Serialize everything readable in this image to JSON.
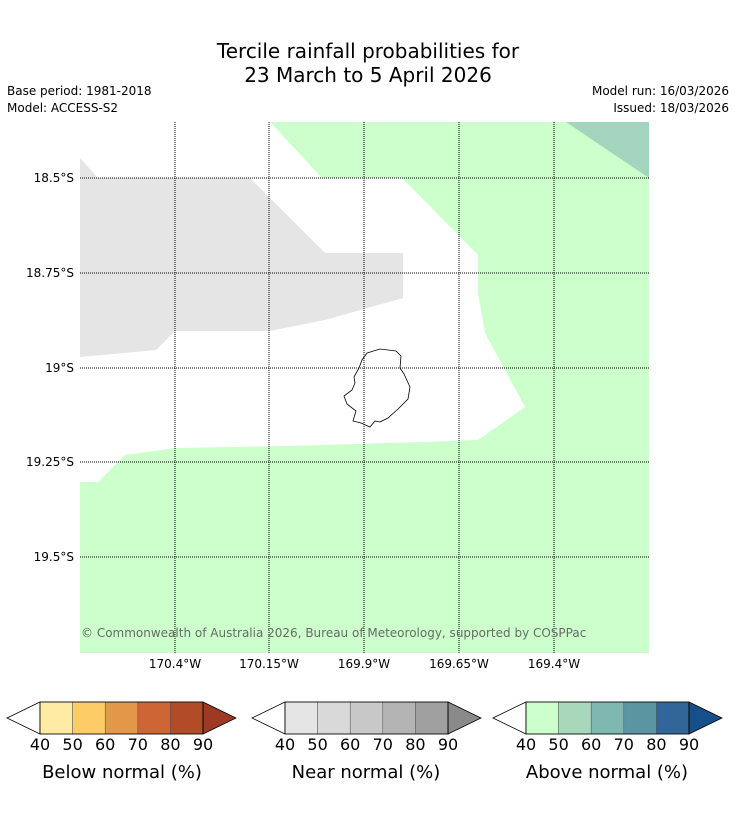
{
  "title": {
    "line1": "Tercile rainfall probabilities for",
    "line2": "23 March to 5 April 2026"
  },
  "meta": {
    "base_period": "Base period: 1981-2018",
    "model": "Model: ACCESS-S2",
    "model_run": "Model run: 16/03/2026",
    "issued": "Issued: 18/03/2026"
  },
  "map": {
    "latitude_labels": [
      "18.5°S",
      "18.75°S",
      "19°S",
      "19.25°S",
      "19.5°S"
    ],
    "longitude_labels": [
      "170.4°W",
      "170.15°W",
      "169.9°W",
      "169.65°W",
      "169.4°W"
    ],
    "copyright": "© Commonwealth of Australia 2026, Bureau of Meteorology, supported by COSPPac",
    "colors": {
      "near_40_50": "#e5e5e5",
      "above_40_50": "#ccffcc",
      "above_50_60": "#a3d4bd",
      "white": "#ffffff"
    }
  },
  "legends": [
    {
      "label": "Below normal (%)",
      "ticks": [
        "40",
        "50",
        "60",
        "70",
        "80",
        "90"
      ],
      "colors": [
        "#ffeba3",
        "#fdcc66",
        "#e29848",
        "#cd6534",
        "#b24c28",
        "#9e3a22"
      ]
    },
    {
      "label": "Near normal (%)",
      "ticks": [
        "40",
        "50",
        "60",
        "70",
        "80",
        "90"
      ],
      "colors": [
        "#e5e5e5",
        "#d9d9d9",
        "#c8c8c8",
        "#b4b4b4",
        "#a0a0a0",
        "#8a8a8a"
      ]
    },
    {
      "label": "Above normal (%)",
      "ticks": [
        "40",
        "50",
        "60",
        "70",
        "80",
        "90"
      ],
      "colors": [
        "#ccffcc",
        "#a8d7bc",
        "#7fb8b0",
        "#5c95a2",
        "#326698",
        "#16508a"
      ]
    }
  ]
}
